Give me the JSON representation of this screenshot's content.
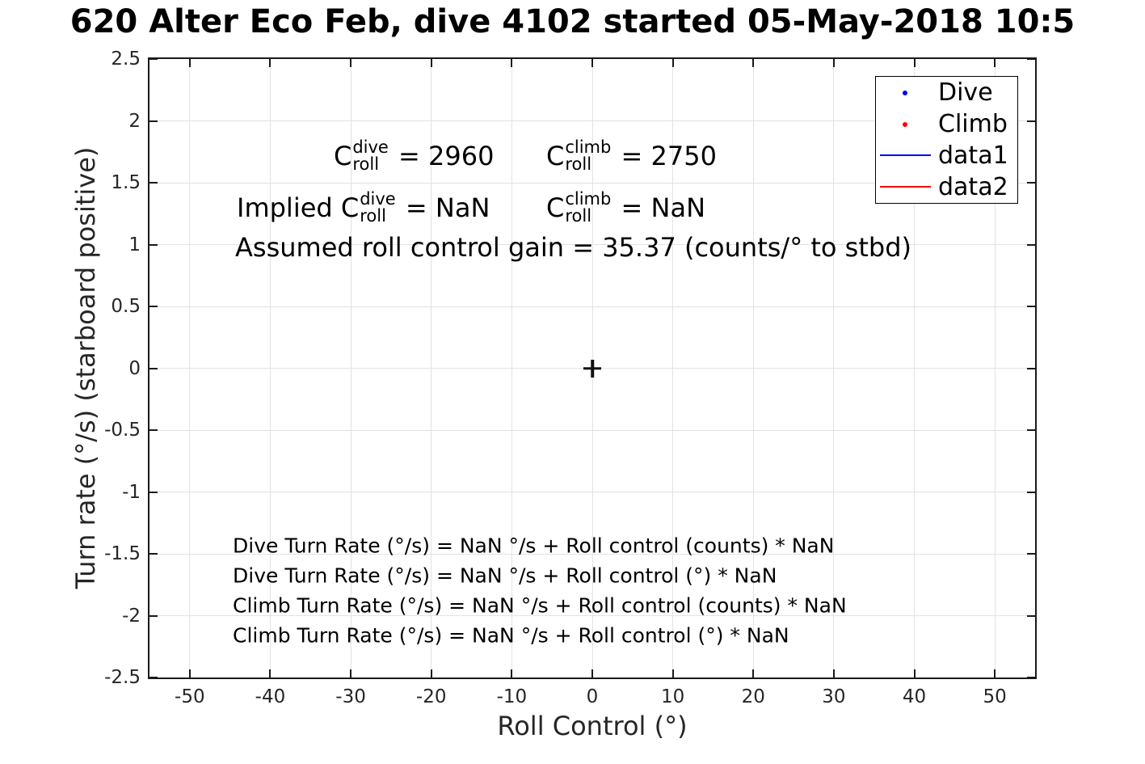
{
  "title": "620 Alter Eco Feb, dive 4102 started 05-May-2018 10:5",
  "chart_data": {
    "type": "scatter",
    "title": "620 Alter Eco Feb, dive 4102 started 05-May-2018 10:5",
    "xlabel": "Roll Control (°)",
    "ylabel": "Turn rate (°/s) (starboard positive)",
    "xlim": [
      -55,
      55
    ],
    "ylim": [
      -2.5,
      2.5
    ],
    "xticks": [
      -50,
      -40,
      -30,
      -20,
      -10,
      0,
      10,
      20,
      30,
      40,
      50
    ],
    "xtick_labels": [
      "-50",
      "-40",
      "-30",
      "-20",
      "-10",
      "0",
      "10",
      "20",
      "30",
      "40",
      "50"
    ],
    "yticks": [
      -2.5,
      -2,
      -1.5,
      -1,
      -0.5,
      0,
      0.5,
      1,
      1.5,
      2,
      2.5
    ],
    "ytick_labels": [
      "-2.5",
      "-2",
      "-1.5",
      "-1",
      "-0.5",
      "0",
      "0.5",
      "1",
      "1.5",
      "2",
      "2.5"
    ],
    "grid": true,
    "series": [
      {
        "name": "Dive",
        "style": "point",
        "color": "#0000ff",
        "points": []
      },
      {
        "name": "Climb",
        "style": "point",
        "color": "#ff0000",
        "points": []
      },
      {
        "name": "data1",
        "style": "line",
        "color": "#0000ff",
        "points": []
      },
      {
        "name": "data2",
        "style": "line",
        "color": "#ff0000",
        "points": []
      }
    ],
    "origin_marker": {
      "shape": "plus",
      "x": 0,
      "y": 0,
      "color": "#111111"
    },
    "legend": {
      "position": "top-right",
      "entries": [
        {
          "label": "Dive",
          "swatch": "dot",
          "color": "#0000ff"
        },
        {
          "label": "Climb",
          "swatch": "dot",
          "color": "#ff0000"
        },
        {
          "label": "data1",
          "swatch": "line",
          "color": "#0000ff"
        },
        {
          "label": "data2",
          "swatch": "line",
          "color": "#ff0000"
        }
      ]
    },
    "annotations": {
      "c_dive": {
        "pre": "C",
        "sup": "dive",
        "sub": "roll",
        "post": " = 2960"
      },
      "c_climb": {
        "pre": "C",
        "sup": "climb",
        "sub": "roll",
        "post": " = 2750"
      },
      "implied_dive": {
        "pre": "Implied C",
        "sup": "dive",
        "sub": "roll",
        "post": " = NaN"
      },
      "implied_climb": {
        "pre": "C",
        "sup": "climb",
        "sub": "roll",
        "post": " = NaN"
      },
      "gain": "Assumed roll control gain = 35.37 (counts/° to stbd)",
      "fit_lines": [
        "Dive Turn Rate (°/s) = NaN °/s + Roll control (counts) * NaN",
        "Dive Turn Rate (°/s) = NaN °/s + Roll control (°) * NaN",
        "Climb Turn Rate (°/s) = NaN °/s + Roll control (counts) * NaN",
        "Climb Turn Rate (°/s) = NaN °/s + Roll control (°) * NaN"
      ]
    }
  }
}
